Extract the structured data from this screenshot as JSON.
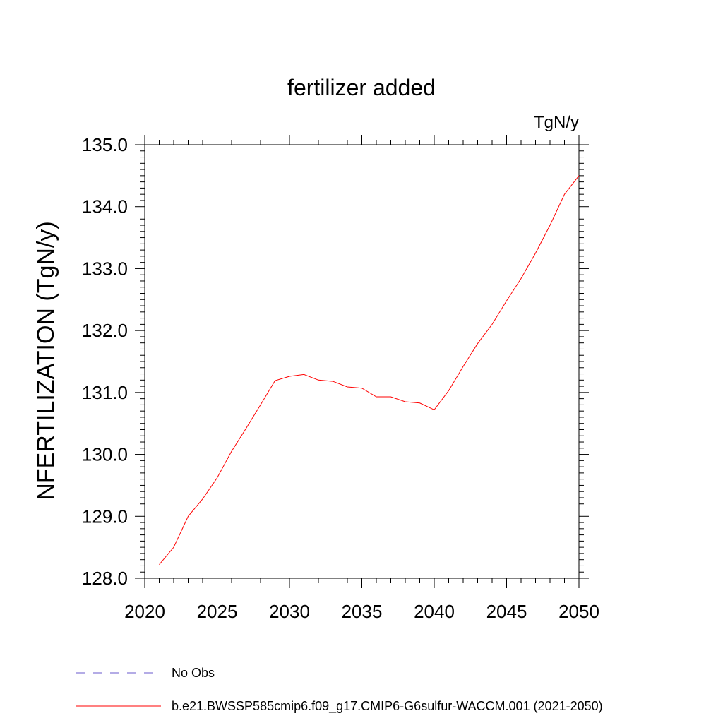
{
  "chart_data": {
    "type": "line",
    "title": "fertilizer added",
    "units": "TgN/y",
    "ylabel": "NFERTILIZATION  (TgN/y)",
    "xlabel": "",
    "xlim": [
      2020,
      2050
    ],
    "ylim": [
      128.0,
      135.0
    ],
    "xticks": [
      "2020",
      "2025",
      "2030",
      "2035",
      "2040",
      "2045",
      "2050"
    ],
    "yticks": [
      "128.0",
      "129.0",
      "130.0",
      "131.0",
      "132.0",
      "133.0",
      "134.0",
      "135.0"
    ],
    "grid": false,
    "legend_placement": "bottom",
    "x": [
      2021,
      2022,
      2023,
      2024,
      2025,
      2026,
      2027,
      2028,
      2029,
      2030,
      2031,
      2032,
      2033,
      2034,
      2035,
      2036,
      2037,
      2038,
      2039,
      2040,
      2041,
      2042,
      2043,
      2044,
      2045,
      2046,
      2047,
      2048,
      2049,
      2050
    ],
    "series": [
      {
        "name": "b.e21.BWSSP585cmip6.f09_g17.CMIP6-G6sulfur-WACCM.001 (2021-2050)",
        "color": "#ff0000",
        "values": [
          128.22,
          128.5,
          129.0,
          129.28,
          129.62,
          130.05,
          130.42,
          130.8,
          131.19,
          131.26,
          131.29,
          131.2,
          131.18,
          131.09,
          131.07,
          130.93,
          130.93,
          130.85,
          130.83,
          130.72,
          131.03,
          131.42,
          131.79,
          132.1,
          132.48,
          132.84,
          133.25,
          133.7,
          134.2,
          134.5
        ]
      }
    ],
    "legend": [
      {
        "label": "No Obs",
        "color": "#6a5acd",
        "style": "dashed"
      },
      {
        "label": "b.e21.BWSSP585cmip6.f09_g17.CMIP6-G6sulfur-WACCM.001 (2021-2050)",
        "color": "#ff0000",
        "style": "solid"
      }
    ]
  }
}
